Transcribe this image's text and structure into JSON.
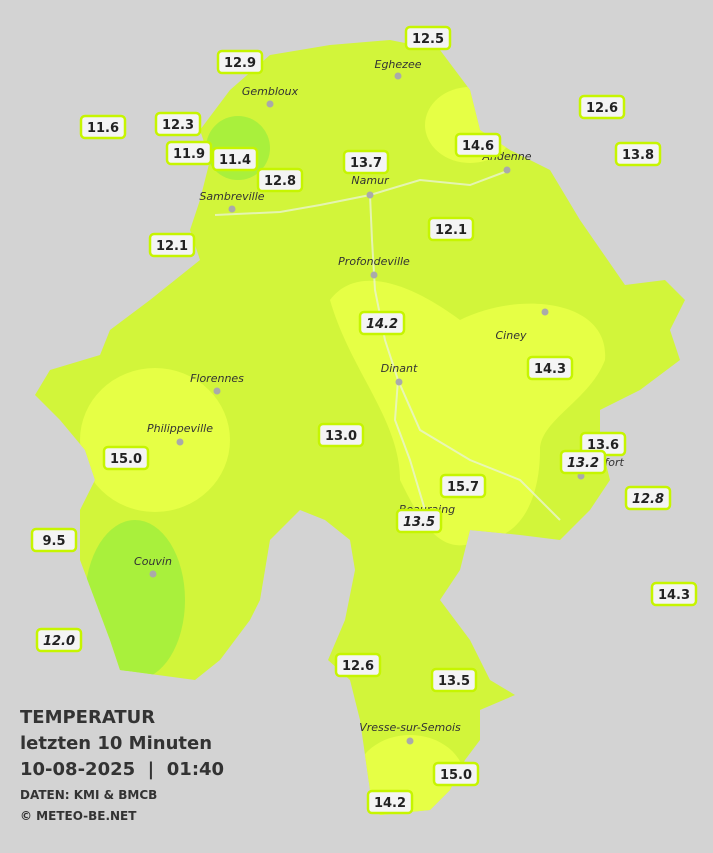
{
  "map": {
    "title": "TEMPERATUR",
    "subtitle": "letzten 10 Minuten",
    "datetime": "10-08-2025  |  01:40",
    "source": "DATEN: KMI & BMCB",
    "copyright": "© METEO-BE.NET",
    "stations": [
      {
        "label": "12.5"
      },
      {
        "label": "12.9"
      },
      {
        "label": "12.6"
      },
      {
        "label": "11.6"
      },
      {
        "label": "12.3"
      },
      {
        "label": "14.6"
      },
      {
        "label": "11.9"
      },
      {
        "label": "11.4"
      },
      {
        "label": "13.7"
      },
      {
        "label": "13.8"
      },
      {
        "label": "12.8"
      },
      {
        "label": "12.1"
      },
      {
        "label": "12.1"
      },
      {
        "label": "14.2",
        "italic": true
      },
      {
        "label": "14.3"
      },
      {
        "label": "13.0"
      },
      {
        "label": "13.6"
      },
      {
        "label": "13.2",
        "italic": true
      },
      {
        "label": "15.0"
      },
      {
        "label": "15.7"
      },
      {
        "label": "12.8",
        "italic": true
      },
      {
        "label": "13.5",
        "italic": true
      },
      {
        "label": "9.5"
      },
      {
        "label": "14.3"
      },
      {
        "label": "12.0",
        "italic": true
      },
      {
        "label": "12.6"
      },
      {
        "label": "13.5"
      },
      {
        "label": "15.0"
      },
      {
        "label": "14.2"
      }
    ],
    "cities": [
      "Eghezee",
      "Gembloux",
      "Andenne",
      "Namur",
      "Sambreville",
      "Profondeville",
      "Ciney",
      "Dinant",
      "Florennes",
      "Philippeville",
      "Rochefort",
      "Beauraing",
      "Couvin",
      "Vresse-sur-Semois"
    ]
  }
}
